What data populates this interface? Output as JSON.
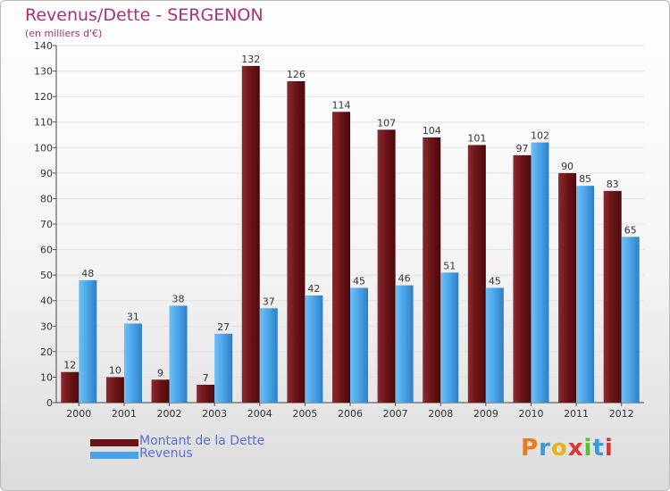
{
  "title": "Revenus/Dette - SERGENON",
  "subtitle": "(en milliers d'€)",
  "logo": {
    "text": "Proxiti",
    "colors": [
      "#e87a1c",
      "#3a9ad9",
      "#e8b21c",
      "#d33",
      "#5bbf2a",
      "#3a9ad9",
      "#d33"
    ]
  },
  "colors": {
    "dette": "#6b1418",
    "revenus": "#4aa3e8",
    "title": "#b0306a",
    "legend_text": "#5a6ed8"
  },
  "legend": [
    {
      "label": "Montant de la Dette",
      "color": "#6b1418"
    },
    {
      "label": "Revenus",
      "color": "#4aa3e8"
    }
  ],
  "chart_data": {
    "type": "bar",
    "title": "Revenus/Dette - SERGENON",
    "subtitle": "(en milliers d'€)",
    "categories": [
      "2000",
      "2001",
      "2002",
      "2003",
      "2004",
      "2005",
      "2006",
      "2007",
      "2008",
      "2009",
      "2010",
      "2011",
      "2012"
    ],
    "series": [
      {
        "name": "Montant de la Dette",
        "values": [
          12,
          10,
          9,
          7,
          132,
          126,
          114,
          107,
          104,
          101,
          97,
          90,
          83
        ]
      },
      {
        "name": "Revenus",
        "values": [
          48,
          31,
          38,
          27,
          37,
          42,
          45,
          46,
          51,
          45,
          102,
          85,
          65
        ]
      }
    ],
    "ylim": [
      0,
      140
    ],
    "yticks": [
      0,
      10,
      20,
      30,
      40,
      50,
      60,
      70,
      80,
      90,
      100,
      110,
      120,
      130,
      140
    ],
    "grid": true,
    "legend_position": "bottom-left"
  }
}
